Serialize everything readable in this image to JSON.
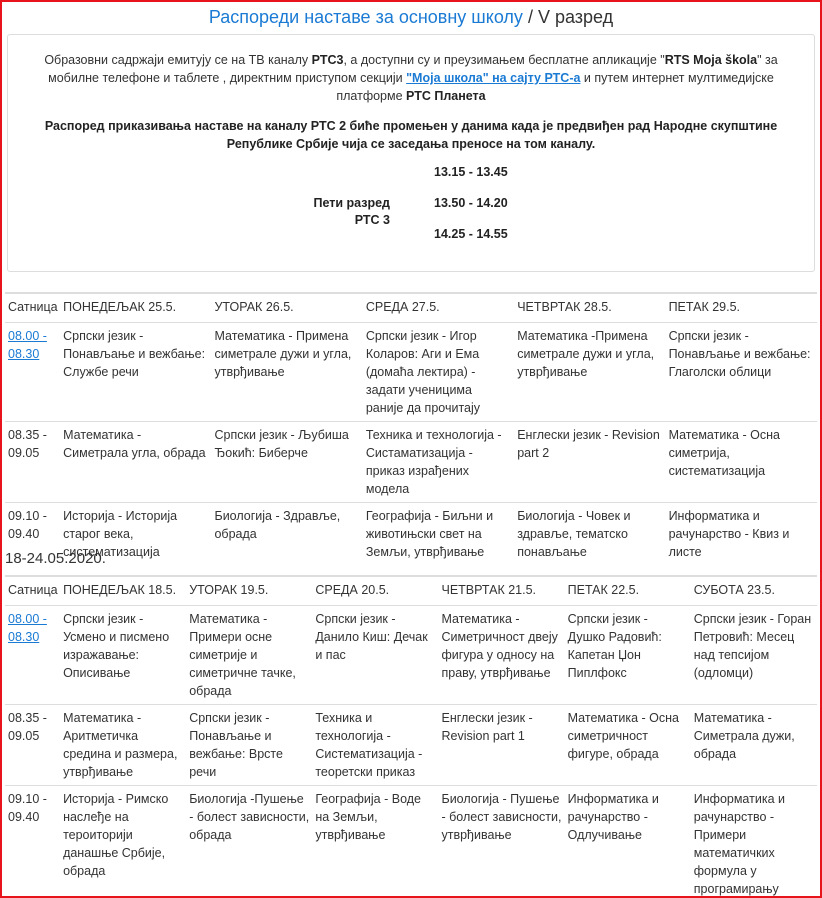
{
  "title": {
    "link": "Распореди наставе за основну школу",
    "rest": " / V разред"
  },
  "info": {
    "p1a": "Образовни садржаји емитују се на ТВ каналу ",
    "p1b": "РТС3",
    "p1c": ", а доступни су и преузимањем бесплатне апликације \"",
    "p1d": "RTS Moja škola",
    "p1e": "\" за мобилне телефоне и таблете , директним приступом секцији ",
    "p1f": "\"Моја школа\" на сајту РТС-а",
    "p1g": " и путем интернет мултимедијске платформе ",
    "p1h": "РТС Планета",
    "notice": "Распоред приказивања наставе на каналу РТС 2 биће промењен у данима када је предвиђен рад Народне скупштине Републике Србије чија се заседања преносе на том каналу.",
    "grade": "Пети разред",
    "channel": "РТС 3",
    "times": [
      "13.15 - 13.45",
      "13.50 - 14.20",
      "14.25 - 14.55"
    ]
  },
  "week1": {
    "headers": [
      "Сатница",
      "ПОНЕДЕЉАК 25.5.",
      "УТОРАК 26.5.",
      "СРЕДА 27.5.",
      "ЧЕТВРТАК 28.5.",
      "ПЕТАК 29.5."
    ],
    "rows": [
      [
        "08.00 - 08.30",
        "Српски језик - Понављање и вежбање: Службе речи",
        "Математика - Примена симетрале дужи и угла, утврђивање",
        "Српски језик - Игор Коларов: Аги и Ема (домаћа лектира) - задати ученицима раније да прочитају",
        "Математика -Примена симетрале дужи и угла, утврђивање",
        "Српски језик - Понављање и вежбање: Глаголски облици"
      ],
      [
        "08.35 - 09.05",
        "Математика - Симетрала угла, обрада",
        "Српски језик - Љубиша Ђокић: Биберче",
        "Техника и технологија - Систаматизација - приказ израђених модела",
        "Енглески језик -  Revision part 2",
        "Математика - Осна симетрија, систематизација"
      ],
      [
        "09.10 - 09.40",
        "Историја  -  Историја старог века, систематизација",
        "Биологија - Здравље, обрада",
        "Географија - Биљни и животињски свет на Земљи, утврђивање",
        "Биологија  - Човек и здравље, тематско понављање",
        "Информатика и рачунарство - Квиз и листе"
      ]
    ]
  },
  "week2": {
    "label": "18-24.05.2020.",
    "headers": [
      "Сатница",
      "ПОНЕДЕЉАК 18.5.",
      "УТОРАК 19.5.",
      "СРЕДА 20.5.",
      "ЧЕТВРТАК 21.5.",
      "ПЕТАК 22.5.",
      "СУБОТА 23.5."
    ],
    "rows": [
      [
        "08.00 - 08.30",
        "Српски језик - Усмено и писмено изражавање: Описивање",
        "Математика - Примери осне симетрије и симетричне тачке, обрада",
        "Српски језик - Данило Киш: Дечак и пас",
        "Математика - Симетричност двеју фигура у односу на праву, утврђивање",
        "Српски језик - Душко Радовић: Капетан Џон Пиплфокс",
        "Српски језик - Горан Петровић: Месец над тепсијом (одломци)"
      ],
      [
        "08.35 - 09.05",
        "Математика - Аритметичка средина и размера, утврђивање",
        "Српски језик - Понављање и вежбање: Врсте речи",
        "Техника и технологија - Систематизација - теоретски приказ",
        "Енглески језик  - Revision part 1",
        "Математика - Осна симетричност фигуре, обрада",
        "Математика - Симетрала дужи, обрада"
      ],
      [
        "09.10 - 09.40",
        "Историја  - Римско наслеђе на тероиторији данашње Србије, обрада",
        "Биологија -Пушење - болест зависности, обрада",
        "Географија - Воде на Земљи, утврђивање",
        "Биологија  - Пушење - болест зависности, утврђивање",
        "Информатика и рачунарство - Одлучивање",
        "Информатика и рачунарство - Примери математичких формула у програмирању"
      ]
    ]
  }
}
